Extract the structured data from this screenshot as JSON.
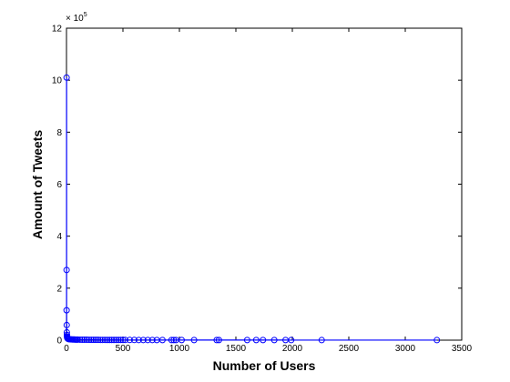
{
  "chart_data": {
    "type": "scatter",
    "title": "",
    "xlabel": "Number of Users",
    "ylabel": "Amount of Tweets",
    "xlim": [
      0,
      3500
    ],
    "ylim": [
      0,
      1200000
    ],
    "y_multiplier_label": "× 10",
    "y_multiplier_exp": "5",
    "xticks": [
      0,
      500,
      1000,
      1500,
      2000,
      2500,
      3000,
      3500
    ],
    "yticks": [
      0,
      2,
      4,
      6,
      8,
      10,
      12
    ],
    "grid": false,
    "marker_color": "#0000ff",
    "line_color": "#0000ff",
    "series": [
      {
        "x": [
          1,
          1,
          1,
          2,
          3,
          4,
          5,
          6,
          8,
          10,
          15,
          20,
          30,
          40,
          50,
          60,
          70,
          80,
          90,
          100,
          120,
          140,
          160,
          180,
          200,
          220,
          240,
          260,
          280,
          300,
          320,
          340,
          360,
          380,
          400,
          420,
          440,
          460,
          480,
          500,
          520,
          560,
          600,
          640,
          680,
          720,
          760,
          800,
          850,
          930,
          950,
          970,
          1020,
          1130,
          1330,
          1350,
          1600,
          1680,
          1740,
          1840,
          1940,
          1990,
          2260,
          3280
        ],
        "y": [
          1010000,
          270000,
          115000,
          58000,
          30000,
          20000,
          14000,
          10000,
          8000,
          6000,
          5000,
          4000,
          3500,
          3000,
          2800,
          2600,
          2400,
          2200,
          2100,
          2000,
          1900,
          1800,
          1700,
          1600,
          1500,
          1400,
          1300,
          1200,
          1150,
          1100,
          1050,
          1000,
          950,
          900,
          850,
          800,
          780,
          760,
          740,
          720,
          700,
          680,
          660,
          640,
          620,
          600,
          580,
          560,
          540,
          520,
          500,
          480,
          460,
          440,
          420,
          400,
          380,
          360,
          340,
          320,
          300,
          280,
          260,
          240
        ]
      }
    ]
  }
}
